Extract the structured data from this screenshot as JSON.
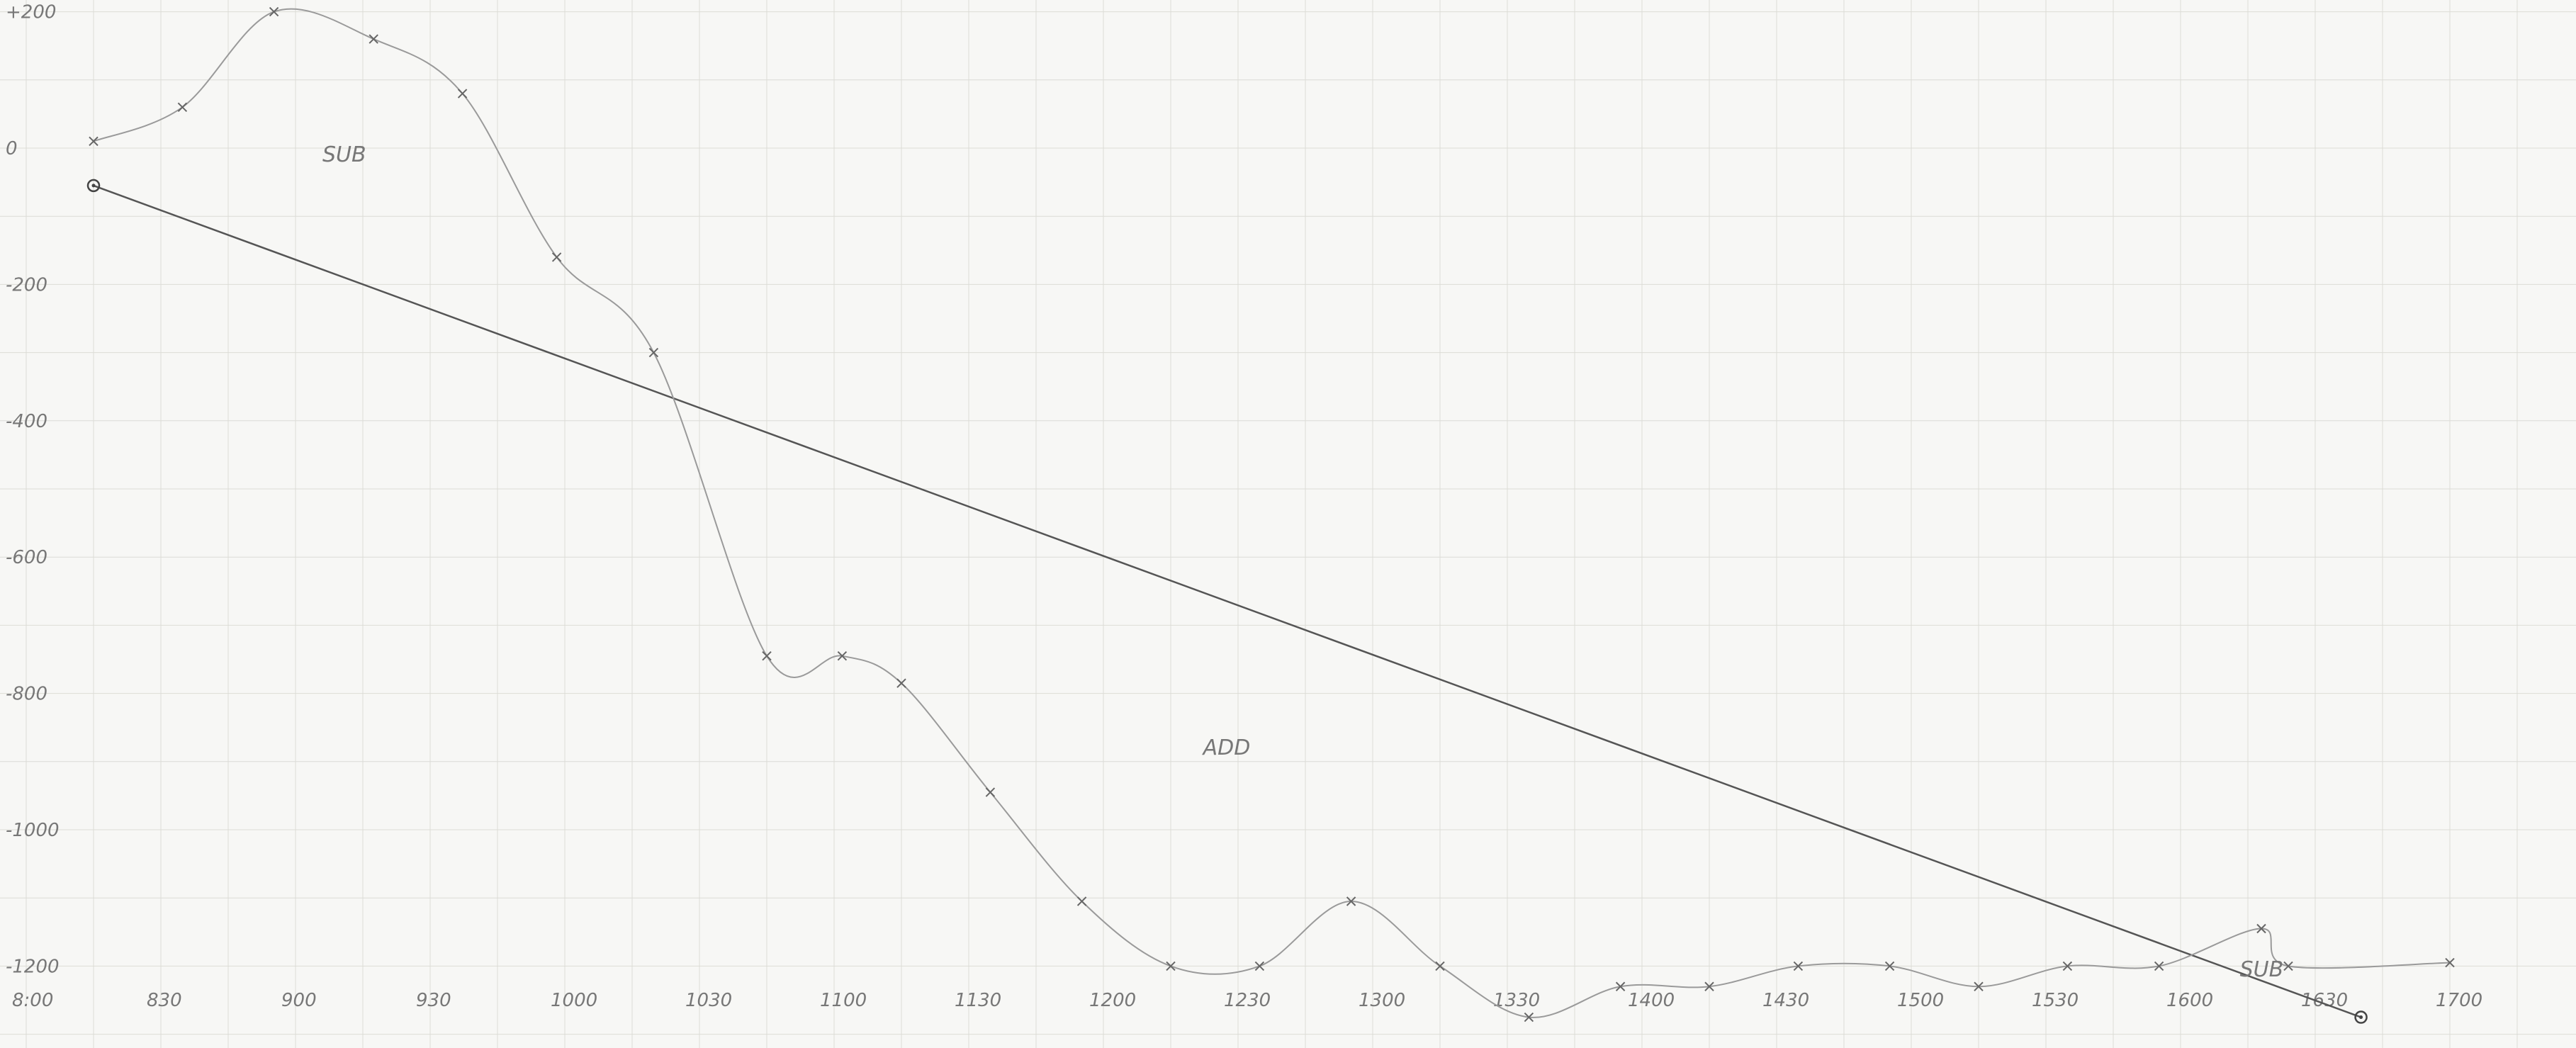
{
  "chart_data": {
    "type": "line",
    "title": "",
    "xlabel": "",
    "ylabel": "",
    "xlim": [
      8.0,
      17.0
    ],
    "ylim": [
      -1250,
      210
    ],
    "grid": true,
    "x_tick_values": [
      8.0,
      8.5,
      9.0,
      9.5,
      10.0,
      10.5,
      11.0,
      11.5,
      12.0,
      12.5,
      13.0,
      13.5,
      14.0,
      14.5,
      15.0,
      15.5,
      16.0,
      16.5,
      17.0
    ],
    "x_tick_labels": [
      "8:00",
      "830",
      "900",
      "930",
      "1000",
      "1030",
      "1100",
      "1130",
      "1200",
      "1230",
      "1300",
      "1330",
      "1400",
      "1430",
      "1500",
      "1530",
      "1600",
      "1630",
      "1700"
    ],
    "y_tick_values": [
      200,
      0,
      -200,
      -400,
      -600,
      -800,
      -1000,
      -1200
    ],
    "y_tick_labels": [
      "+200",
      "0",
      "-200",
      "-400",
      "-600",
      "-800",
      "-1000",
      "-1200"
    ],
    "series": [
      {
        "values_x": [
          8.25,
          8.58,
          8.92,
          9.29,
          9.62,
          9.97,
          10.33,
          10.75,
          11.03,
          11.25,
          11.58,
          11.92,
          12.25,
          12.58,
          12.92,
          13.25,
          13.58,
          13.92,
          14.25,
          14.58,
          14.92,
          15.25,
          15.58,
          15.92,
          16.3,
          16.4,
          17.0
        ],
        "values_y": [
          10,
          60,
          200,
          160,
          80,
          -160,
          -300,
          -745,
          -745,
          -785,
          -945,
          -1105,
          -1200,
          -1200,
          -1105,
          -1200,
          -1275,
          -1230,
          -1230,
          -1200,
          -1200,
          -1230,
          -1200,
          -1200,
          -1145,
          -1200,
          -1195
        ]
      },
      {
        "values_x": [
          8.25,
          16.67
        ],
        "values_y": [
          -55,
          -1275
        ]
      }
    ],
    "annotations": [
      {
        "text": "SUB",
        "x": 9.1,
        "y": -20
      },
      {
        "text": "ADD",
        "x": 12.37,
        "y": -890
      },
      {
        "text": "SUB",
        "x": 16.22,
        "y": -1215
      }
    ]
  }
}
